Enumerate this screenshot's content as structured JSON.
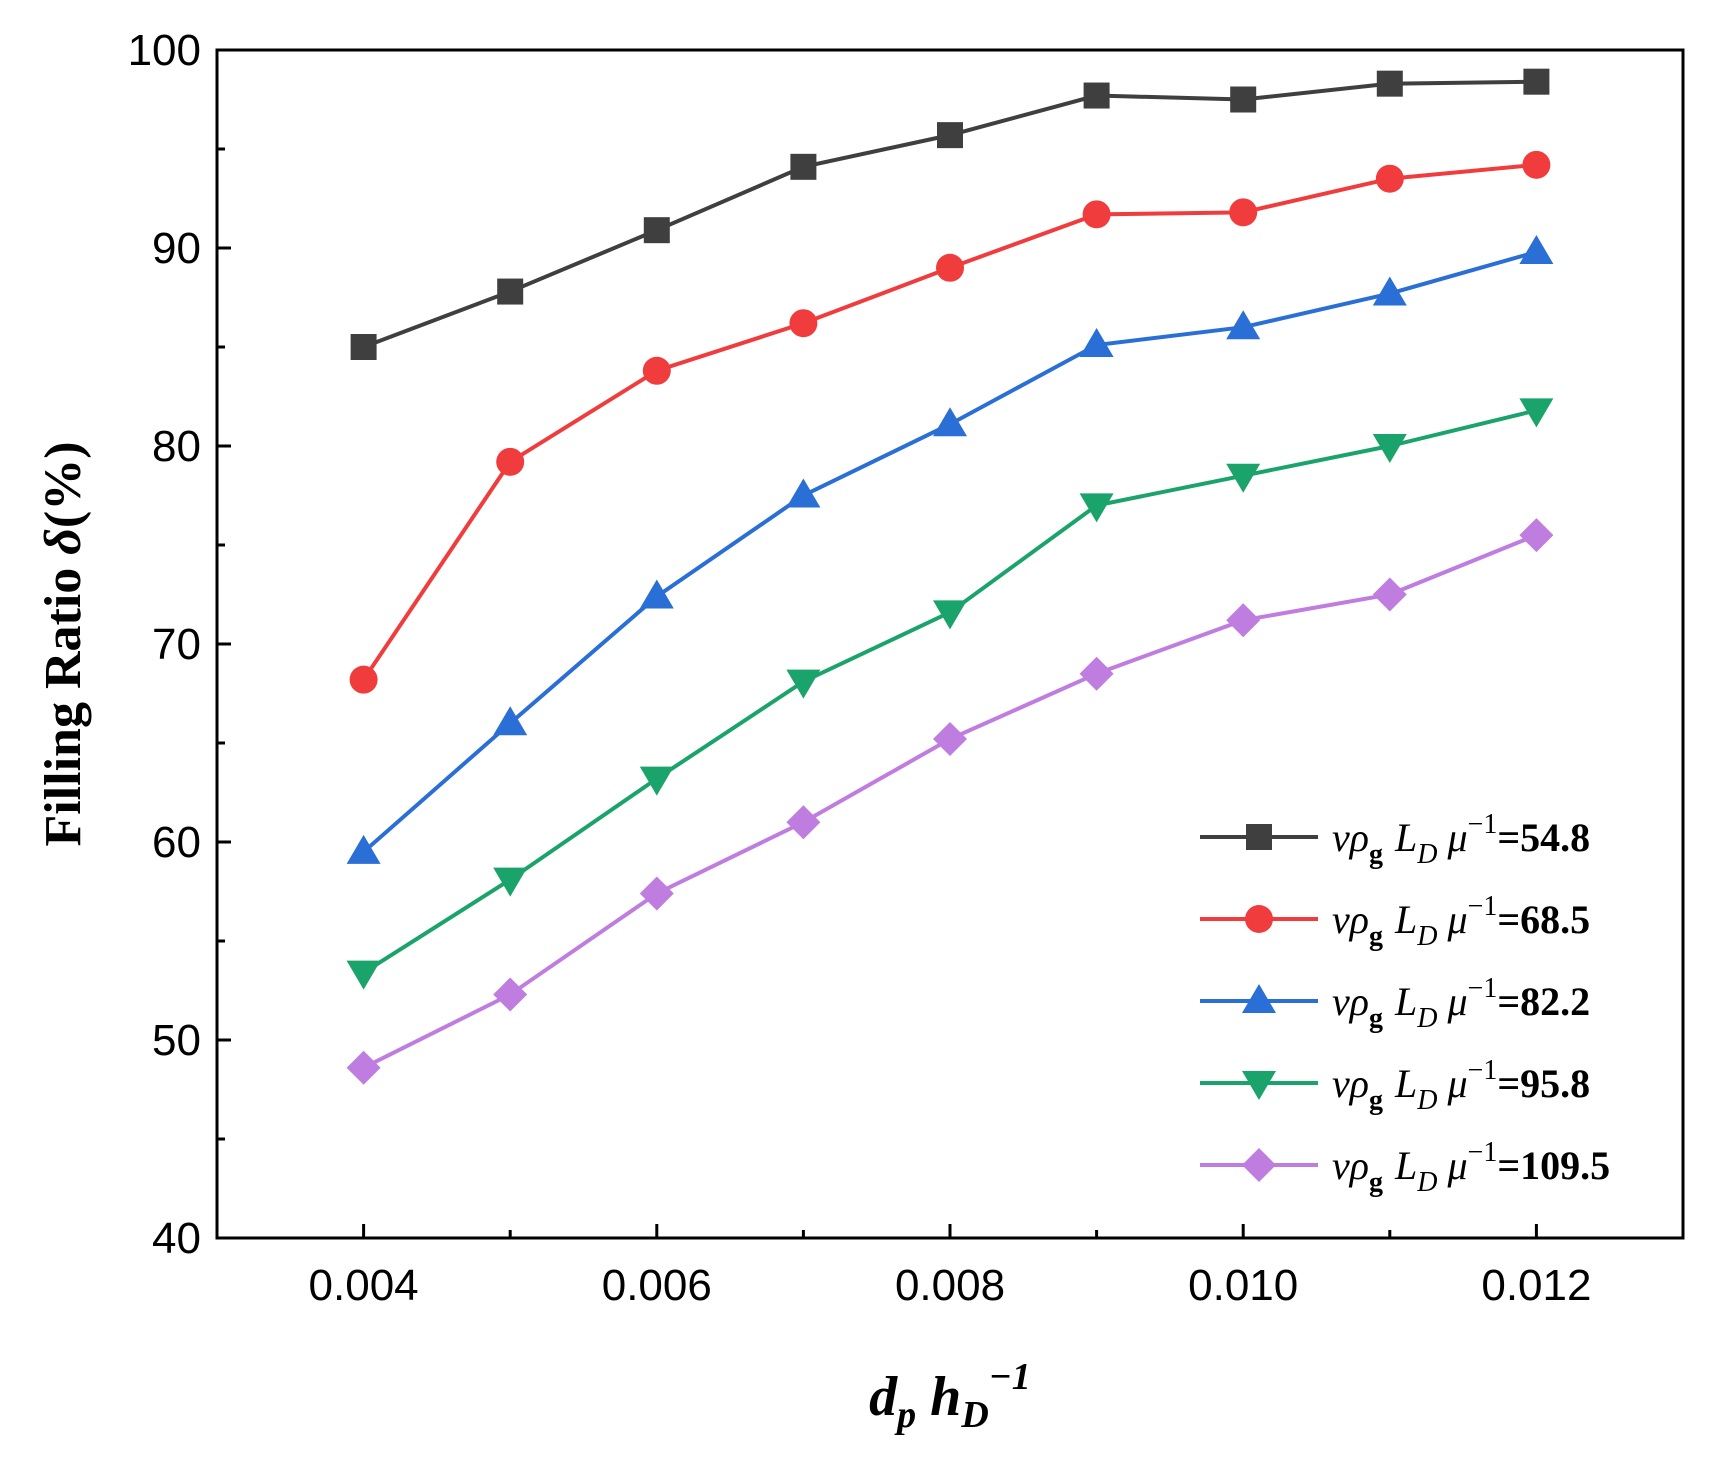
{
  "chart_data": {
    "type": "line",
    "title": "",
    "ylabel": {
      "main": "Filling Ratio ",
      "symbol": "δ",
      "unit": "(%)"
    },
    "xlabel": {
      "d": "d",
      "d_sub": "p",
      "h": "h",
      "h_sub": "D",
      "h_sup": "−1"
    },
    "xlim": [
      0.003,
      0.013
    ],
    "ylim": [
      40,
      100
    ],
    "x_ticks": [
      0.004,
      0.006,
      0.008,
      0.01,
      0.012
    ],
    "x_tick_labels": [
      "0.004",
      "0.006",
      "0.008",
      "0.010",
      "0.012"
    ],
    "y_ticks": [
      40,
      50,
      60,
      70,
      80,
      90,
      100
    ],
    "y_tick_labels": [
      "40",
      "50",
      "60",
      "70",
      "80",
      "90",
      "100"
    ],
    "x": [
      0.004,
      0.005,
      0.006,
      0.007,
      0.008,
      0.009,
      0.01,
      0.011,
      0.012
    ],
    "legend_position": "bottom-right",
    "legend_prefix": {
      "v": "v",
      "rho": "ρ",
      "rho_sub": "g",
      "L": "L",
      "L_sub": "D",
      "mu": "μ",
      "mu_sup": "−1"
    },
    "series": [
      {
        "name": "=54.8",
        "color": "#3f3f3f",
        "marker": "square",
        "values": [
          85.0,
          87.8,
          90.9,
          94.1,
          95.7,
          97.7,
          97.5,
          98.3,
          98.4
        ]
      },
      {
        "name": "=68.5",
        "color": "#f03c3c",
        "marker": "circle",
        "values": [
          68.2,
          79.2,
          83.8,
          86.2,
          89.0,
          91.7,
          91.8,
          93.5,
          94.2
        ]
      },
      {
        "name": "=82.2",
        "color": "#2a6fd6",
        "marker": "triangle-up",
        "values": [
          59.5,
          66.0,
          72.4,
          77.5,
          81.1,
          85.1,
          86.0,
          87.7,
          89.8
        ]
      },
      {
        "name": "=95.8",
        "color": "#1aa36a",
        "marker": "triangle-down",
        "values": [
          53.4,
          58.1,
          63.2,
          68.1,
          71.6,
          77.0,
          78.5,
          80.0,
          81.8
        ]
      },
      {
        "name": "=109.5",
        "color": "#c07de0",
        "marker": "diamond",
        "values": [
          48.6,
          52.3,
          57.4,
          61.0,
          65.2,
          68.5,
          71.2,
          72.5,
          75.5
        ]
      }
    ]
  }
}
